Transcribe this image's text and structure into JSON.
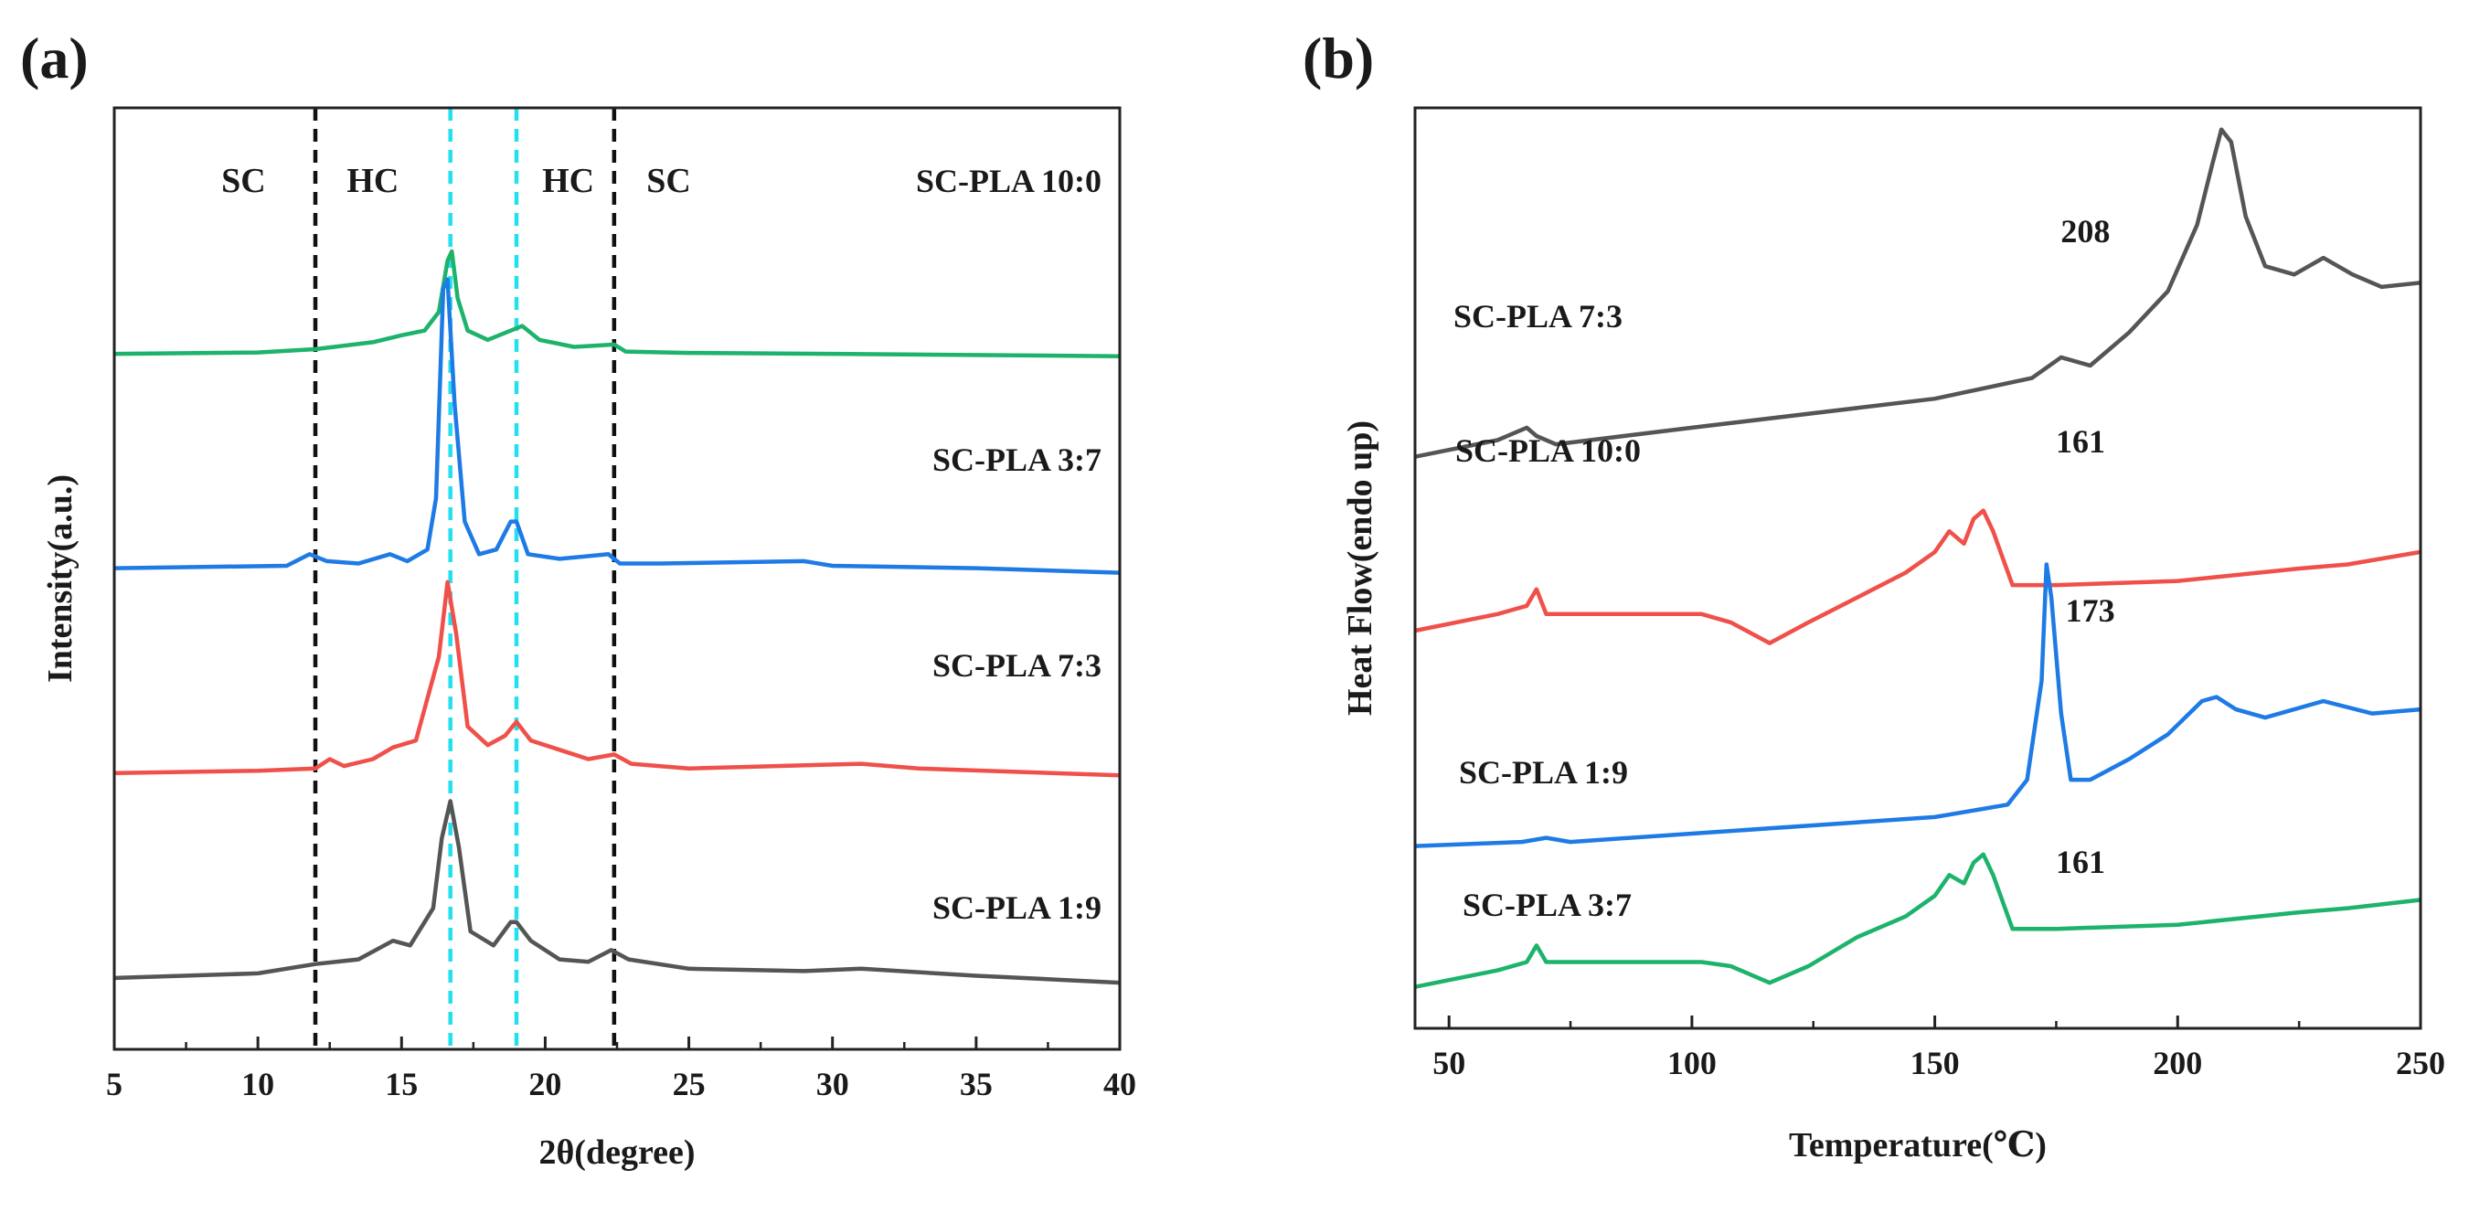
{
  "chart_data": [
    {
      "panel": "(a)",
      "type": "line",
      "xlabel": "2θ(degree)",
      "ylabel": "Intensity(a.u.)",
      "xlim": [
        5,
        40
      ],
      "xticks": [
        5,
        10,
        15,
        20,
        25,
        30,
        35,
        40
      ],
      "vlines": [
        {
          "x": 12.0,
          "color": "#111111"
        },
        {
          "x": 16.7,
          "color": "#22e0ee"
        },
        {
          "x": 19.0,
          "color": "#22e0ee"
        },
        {
          "x": 22.4,
          "color": "#111111"
        }
      ],
      "region_labels": [
        {
          "text": "SC",
          "x": 9.5
        },
        {
          "text": "HC",
          "x": 14.0
        },
        {
          "text": "HC",
          "x": 20.8
        },
        {
          "text": "SC",
          "x": 24.3
        }
      ],
      "series": [
        {
          "name": "SC-PLA 10:0",
          "color": "#1db36b",
          "offset": 0.93,
          "points": [
            [
              5,
              0
            ],
            [
              10,
              0.003
            ],
            [
              12,
              0.01
            ],
            [
              14,
              0.025
            ],
            [
              15,
              0.04
            ],
            [
              15.8,
              0.05
            ],
            [
              16.3,
              0.09
            ],
            [
              16.6,
              0.2
            ],
            [
              16.75,
              0.22
            ],
            [
              16.95,
              0.12
            ],
            [
              17.3,
              0.05
            ],
            [
              18,
              0.03
            ],
            [
              18.8,
              0.05
            ],
            [
              19.2,
              0.06
            ],
            [
              19.8,
              0.03
            ],
            [
              21,
              0.015
            ],
            [
              22.4,
              0.02
            ],
            [
              22.8,
              0.005
            ],
            [
              25,
              0.002
            ],
            [
              30,
              0
            ],
            [
              40,
              -0.005
            ]
          ]
        },
        {
          "name": "SC-PLA 3:7",
          "color": "#1e7be5",
          "offset": 0.47,
          "points": [
            [
              5,
              0
            ],
            [
              11,
              0.005
            ],
            [
              11.8,
              0.03
            ],
            [
              12.4,
              0.015
            ],
            [
              13.5,
              0.01
            ],
            [
              14.6,
              0.03
            ],
            [
              15.2,
              0.015
            ],
            [
              15.9,
              0.04
            ],
            [
              16.2,
              0.15
            ],
            [
              16.45,
              0.6
            ],
            [
              16.6,
              0.62
            ],
            [
              16.85,
              0.35
            ],
            [
              17.2,
              0.1
            ],
            [
              17.7,
              0.03
            ],
            [
              18.3,
              0.04
            ],
            [
              18.8,
              0.1
            ],
            [
              19.0,
              0.1
            ],
            [
              19.4,
              0.03
            ],
            [
              20.5,
              0.02
            ],
            [
              22.2,
              0.03
            ],
            [
              22.6,
              0.01
            ],
            [
              24,
              0.01
            ],
            [
              29,
              0.015
            ],
            [
              30,
              0.005
            ],
            [
              35,
              0
            ],
            [
              40,
              -0.01
            ]
          ]
        },
        {
          "name": "SC-PLA 7:3",
          "color": "#f0504a",
          "offset": 0.03,
          "points": [
            [
              5,
              0
            ],
            [
              10,
              0.005
            ],
            [
              12,
              0.01
            ],
            [
              12.5,
              0.03
            ],
            [
              13,
              0.015
            ],
            [
              14,
              0.03
            ],
            [
              14.7,
              0.055
            ],
            [
              15.5,
              0.07
            ],
            [
              16.3,
              0.25
            ],
            [
              16.6,
              0.41
            ],
            [
              16.9,
              0.3
            ],
            [
              17.3,
              0.1
            ],
            [
              18,
              0.06
            ],
            [
              18.6,
              0.08
            ],
            [
              19.0,
              0.11
            ],
            [
              19.5,
              0.07
            ],
            [
              20.5,
              0.05
            ],
            [
              21.5,
              0.03
            ],
            [
              22.4,
              0.04
            ],
            [
              23,
              0.02
            ],
            [
              25,
              0.01
            ],
            [
              31,
              0.02
            ],
            [
              33,
              0.01
            ],
            [
              40,
              -0.005
            ]
          ]
        },
        {
          "name": "SC-PLA 1:9",
          "color": "#555555",
          "offset": -0.41,
          "points": [
            [
              5,
              0
            ],
            [
              10,
              0.01
            ],
            [
              12,
              0.03
            ],
            [
              13.5,
              0.04
            ],
            [
              14.7,
              0.08
            ],
            [
              15.3,
              0.07
            ],
            [
              16.1,
              0.15
            ],
            [
              16.4,
              0.3
            ],
            [
              16.7,
              0.38
            ],
            [
              17.0,
              0.28
            ],
            [
              17.4,
              0.1
            ],
            [
              18.2,
              0.07
            ],
            [
              18.8,
              0.12
            ],
            [
              19.0,
              0.12
            ],
            [
              19.5,
              0.08
            ],
            [
              20.5,
              0.04
            ],
            [
              21.5,
              0.035
            ],
            [
              22.3,
              0.06
            ],
            [
              22.9,
              0.04
            ],
            [
              25,
              0.02
            ],
            [
              29,
              0.015
            ],
            [
              31,
              0.02
            ],
            [
              35,
              0.005
            ],
            [
              40,
              -0.01
            ]
          ]
        }
      ],
      "series_label_positions": [
        "10:0 at top",
        "3:7",
        "7:3",
        "1:9 at bottom"
      ]
    },
    {
      "panel": "(b)",
      "type": "line",
      "xlabel": "Temperature(℃)",
      "ylabel": "Heat Flow(endo up)",
      "xlim": [
        43,
        250
      ],
      "xticks": [
        50,
        100,
        150,
        200,
        250
      ],
      "annotations": [
        {
          "text": "208",
          "x": 181,
          "series": "SC-PLA 7:3"
        },
        {
          "text": "161",
          "x": 180,
          "series": "SC-PLA 10:0"
        },
        {
          "text": "173",
          "x": 182,
          "series": "SC-PLA 1:9"
        },
        {
          "text": "161",
          "x": 180,
          "series": "SC-PLA 3:7"
        }
      ],
      "series": [
        {
          "name": "SC-PLA 7:3",
          "color": "#555555",
          "points": [
            [
              43,
              0.69
            ],
            [
              60,
              0.71
            ],
            [
              66,
              0.725
            ],
            [
              68,
              0.715
            ],
            [
              72,
              0.705
            ],
            [
              100,
              0.725
            ],
            [
              150,
              0.76
            ],
            [
              170,
              0.785
            ],
            [
              176,
              0.81
            ],
            [
              182,
              0.8
            ],
            [
              190,
              0.84
            ],
            [
              198,
              0.89
            ],
            [
              204,
              0.97
            ],
            [
              207,
              1.04
            ],
            [
              209,
              1.085
            ],
            [
              211,
              1.07
            ],
            [
              214,
              0.98
            ],
            [
              218,
              0.92
            ],
            [
              224,
              0.91
            ],
            [
              230,
              0.93
            ],
            [
              236,
              0.91
            ],
            [
              242,
              0.895
            ],
            [
              250,
              0.9
            ]
          ]
        },
        {
          "name": "SC-PLA 10:0",
          "color": "#f0504a",
          "points": [
            [
              43,
              0.48
            ],
            [
              60,
              0.5
            ],
            [
              66,
              0.51
            ],
            [
              68,
              0.53
            ],
            [
              70,
              0.5
            ],
            [
              86,
              0.5
            ],
            [
              102,
              0.5
            ],
            [
              108,
              0.49
            ],
            [
              116,
              0.465
            ],
            [
              124,
              0.49
            ],
            [
              134,
              0.52
            ],
            [
              144,
              0.55
            ],
            [
              150,
              0.575
            ],
            [
              153,
              0.6
            ],
            [
              156,
              0.585
            ],
            [
              158,
              0.615
            ],
            [
              160,
              0.625
            ],
            [
              162,
              0.6
            ],
            [
              166,
              0.535
            ],
            [
              175,
              0.535
            ],
            [
              200,
              0.54
            ],
            [
              225,
              0.555
            ],
            [
              235,
              0.56
            ],
            [
              250,
              0.575
            ]
          ]
        },
        {
          "name": "SC-PLA 1:9",
          "color": "#1e7be5",
          "points": [
            [
              43,
              0.22
            ],
            [
              65,
              0.225
            ],
            [
              70,
              0.23
            ],
            [
              75,
              0.225
            ],
            [
              100,
              0.235
            ],
            [
              150,
              0.255
            ],
            [
              165,
              0.27
            ],
            [
              169,
              0.3
            ],
            [
              172,
              0.42
            ],
            [
              173,
              0.56
            ],
            [
              174,
              0.52
            ],
            [
              176,
              0.38
            ],
            [
              178,
              0.3
            ],
            [
              182,
              0.3
            ],
            [
              190,
              0.325
            ],
            [
              198,
              0.355
            ],
            [
              205,
              0.395
            ],
            [
              208,
              0.4
            ],
            [
              212,
              0.385
            ],
            [
              218,
              0.375
            ],
            [
              230,
              0.395
            ],
            [
              240,
              0.38
            ],
            [
              250,
              0.385
            ]
          ]
        },
        {
          "name": "SC-PLA 3:7",
          "color": "#1db36b",
          "points": [
            [
              43,
              0.05
            ],
            [
              60,
              0.07
            ],
            [
              66,
              0.08
            ],
            [
              68,
              0.1
            ],
            [
              70,
              0.08
            ],
            [
              86,
              0.08
            ],
            [
              102,
              0.08
            ],
            [
              108,
              0.075
            ],
            [
              116,
              0.055
            ],
            [
              124,
              0.075
            ],
            [
              134,
              0.11
            ],
            [
              144,
              0.135
            ],
            [
              150,
              0.16
            ],
            [
              153,
              0.185
            ],
            [
              156,
              0.175
            ],
            [
              158,
              0.2
            ],
            [
              160,
              0.21
            ],
            [
              162,
              0.185
            ],
            [
              166,
              0.12
            ],
            [
              175,
              0.12
            ],
            [
              200,
              0.125
            ],
            [
              225,
              0.14
            ],
            [
              235,
              0.145
            ],
            [
              250,
              0.155
            ]
          ]
        }
      ]
    }
  ],
  "panel_labels": [
    "(a)",
    "(b)"
  ]
}
